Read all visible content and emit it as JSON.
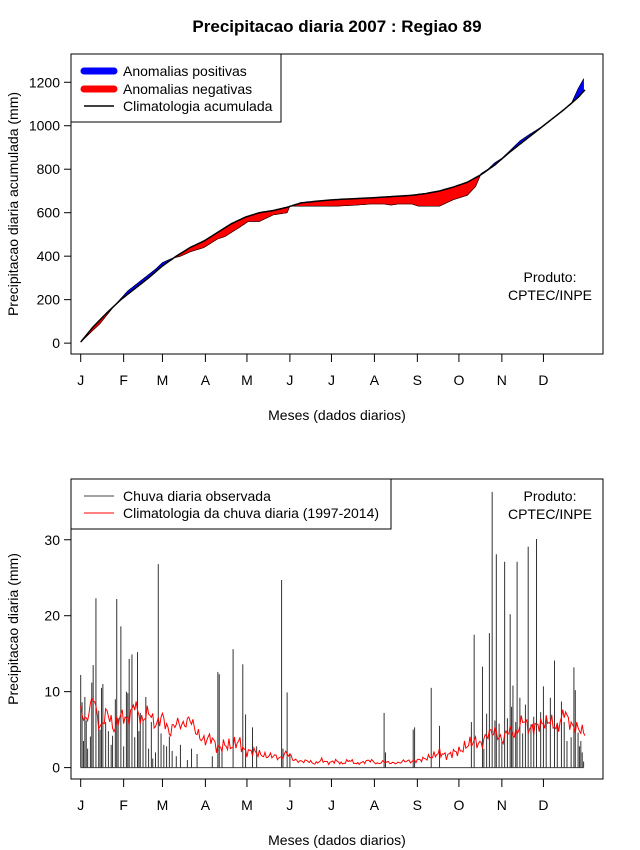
{
  "title": "Precipitacao diaria 2007 : Regiao 89",
  "credit_line1": "Produto:",
  "credit_line2": "CPTEC/INPE",
  "colors": {
    "positive": "#0000ff",
    "negative": "#ff0000",
    "line": "#000000",
    "clim": "#ff0000",
    "bars": "#333333"
  },
  "chart_data": [
    {
      "type": "area",
      "ylabel": "Precipitacao diaria acumulada (mm)",
      "xlabel": "Meses (dados diarios)",
      "months": [
        "J",
        "F",
        "M",
        "A",
        "M",
        "J",
        "J",
        "A",
        "S",
        "O",
        "N",
        "D"
      ],
      "month_start_day": [
        1,
        32,
        60,
        91,
        121,
        152,
        182,
        213,
        244,
        274,
        305,
        335
      ],
      "xlim": [
        -6,
        378
      ],
      "ylim": [
        -50,
        1330
      ],
      "yticks": [
        0,
        200,
        400,
        600,
        800,
        1000,
        1200
      ],
      "legend": [
        "Anomalias positivas",
        "Anomalias negativas",
        "Climatologia acumulada"
      ],
      "observed_cumulative": {
        "day": [
          1,
          10,
          15,
          25,
          35,
          45,
          55,
          60,
          67,
          73,
          80,
          90,
          95,
          100,
          105,
          115,
          122,
          130,
          140,
          150,
          152,
          160,
          175,
          185,
          200,
          210,
          220,
          225,
          230,
          240,
          245,
          260,
          270,
          280,
          286,
          290,
          295,
          300,
          305,
          310,
          318,
          325,
          335,
          345,
          355,
          360,
          364
        ],
        "value": [
          5,
          60,
          90,
          170,
          240,
          290,
          340,
          370,
          390,
          400,
          420,
          440,
          460,
          480,
          490,
          530,
          560,
          560,
          590,
          600,
          630,
          630,
          630,
          630,
          635,
          640,
          640,
          635,
          640,
          640,
          630,
          630,
          660,
          680,
          720,
          780,
          800,
          830,
          850,
          880,
          930,
          960,
          1000,
          1050,
          1100,
          1170,
          1215
        ]
      },
      "climatology_cumulative": {
        "day": [
          1,
          10,
          20,
          30,
          40,
          50,
          60,
          70,
          80,
          90,
          100,
          110,
          120,
          130,
          140,
          150,
          160,
          170,
          180,
          190,
          200,
          210,
          220,
          230,
          240,
          250,
          260,
          270,
          280,
          290,
          300,
          310,
          320,
          330,
          340,
          350,
          360,
          365
        ],
        "value": [
          5,
          75,
          140,
          200,
          250,
          300,
          355,
          400,
          440,
          470,
          510,
          550,
          580,
          600,
          610,
          625,
          645,
          652,
          658,
          662,
          665,
          668,
          672,
          676,
          680,
          688,
          700,
          718,
          740,
          775,
          820,
          875,
          925,
          975,
          1025,
          1075,
          1130,
          1165
        ]
      }
    },
    {
      "type": "bar",
      "ylabel": "Precipitacao diaria (mm)",
      "xlabel": "Meses (dados diarios)",
      "months": [
        "J",
        "F",
        "M",
        "A",
        "M",
        "J",
        "J",
        "A",
        "S",
        "O",
        "N",
        "D"
      ],
      "month_start_day": [
        1,
        32,
        60,
        91,
        121,
        152,
        182,
        213,
        244,
        274,
        305,
        335
      ],
      "xlim": [
        -6,
        378
      ],
      "ylim": [
        -1.5,
        38
      ],
      "yticks": [
        0,
        10,
        20,
        30
      ],
      "legend": [
        "Chuva diaria observada",
        "Climatologia da chuva diaria (1997-2014)"
      ],
      "observed_daily": {
        "day": [
          1,
          2,
          3,
          4,
          5,
          6,
          8,
          9,
          10,
          12,
          14,
          15,
          16,
          17,
          19,
          21,
          23,
          24,
          26,
          27,
          28,
          30,
          32,
          34,
          35,
          36,
          38,
          40,
          42,
          43,
          44,
          46,
          48,
          50,
          52,
          53,
          55,
          57,
          59,
          61,
          63,
          65,
          67,
          70,
          73,
          78,
          81,
          85,
          96,
          100,
          101,
          103,
          111,
          118,
          120,
          125,
          128,
          146,
          147,
          150,
          152,
          220,
          221,
          241,
          242,
          254,
          260,
          283,
          285,
          291,
          292,
          294,
          296,
          298,
          300,
          301,
          303,
          305,
          307,
          309,
          311,
          312,
          313,
          315,
          316,
          318,
          320,
          322,
          324,
          326,
          328,
          330,
          333,
          335,
          337,
          340,
          343,
          345,
          348,
          350,
          352,
          355,
          357,
          358,
          360,
          361,
          362,
          363,
          364
        ],
        "value": [
          12.2,
          8.6,
          3.5,
          9.3,
          6.2,
          2.5,
          4.1,
          11.2,
          13.5,
          22.3,
          7.5,
          5.0,
          10.5,
          11.0,
          6.0,
          4.8,
          3.0,
          4.2,
          9.0,
          22.2,
          6.5,
          18.6,
          2.8,
          10.0,
          9.8,
          14.3,
          14.9,
          4.0,
          15.2,
          4.8,
          7.2,
          6.1,
          9.3,
          2.5,
          6.0,
          1.2,
          2.0,
          26.8,
          4.5,
          3.0,
          2.8,
          4.1,
          2.2,
          1.5,
          3.0,
          1.0,
          2.5,
          1.8,
          1.5,
          12.6,
          12.3,
          2.5,
          15.6,
          13.6,
          7.0,
          5.3,
          2.8,
          24.7,
          2.5,
          9.9,
          1.8,
          7.2,
          2.0,
          5.0,
          5.3,
          10.5,
          5.5,
          6.0,
          17.5,
          13.3,
          2.5,
          7.1,
          17.7,
          36.3,
          6.2,
          28.1,
          5.8,
          3.4,
          27.1,
          6.5,
          20.2,
          8.0,
          10.8,
          6.0,
          27.1,
          9.2,
          4.5,
          8.3,
          29.1,
          5.7,
          6.7,
          30.1,
          7.3,
          10.7,
          6.8,
          9.2,
          14.1,
          5.8,
          8.7,
          6.0,
          3.5,
          4.0,
          13.2,
          10.2,
          4.6,
          2.8,
          3.5,
          2.0,
          0.8
        ]
      },
      "climatology_daily": {
        "day": [
          1,
          5,
          10,
          15,
          20,
          25,
          30,
          35,
          40,
          45,
          50,
          55,
          60,
          65,
          70,
          75,
          80,
          85,
          90,
          95,
          100,
          105,
          110,
          115,
          120,
          125,
          130,
          135,
          140,
          145,
          150,
          155,
          160,
          165,
          170,
          175,
          180,
          185,
          190,
          195,
          200,
          205,
          210,
          215,
          220,
          225,
          230,
          235,
          240,
          245,
          250,
          255,
          260,
          265,
          270,
          275,
          280,
          285,
          290,
          295,
          300,
          305,
          310,
          315,
          320,
          325,
          330,
          335,
          340,
          345,
          350,
          355,
          360,
          365
        ],
        "value": [
          7.5,
          6.0,
          9.5,
          5.0,
          7.5,
          5.0,
          7.0,
          6.2,
          8.5,
          6.0,
          7.5,
          5.5,
          6.8,
          4.5,
          6.0,
          5.5,
          6.5,
          4.5,
          3.5,
          4.0,
          2.5,
          3.0,
          2.8,
          3.5,
          2.0,
          2.2,
          1.8,
          1.5,
          1.6,
          1.2,
          2.0,
          1.0,
          0.8,
          0.9,
          0.5,
          1.0,
          0.6,
          0.9,
          0.5,
          1.0,
          0.5,
          0.7,
          1.0,
          0.5,
          0.8,
          0.6,
          0.6,
          0.9,
          0.8,
          1.0,
          1.2,
          1.5,
          2.0,
          1.5,
          2.0,
          2.2,
          3.0,
          3.5,
          3.0,
          4.5,
          4.8,
          3.5,
          5.0,
          4.2,
          6.5,
          5.0,
          5.5,
          5.8,
          6.2,
          5.0,
          7.5,
          5.5,
          5.2,
          4.6
        ]
      }
    }
  ]
}
